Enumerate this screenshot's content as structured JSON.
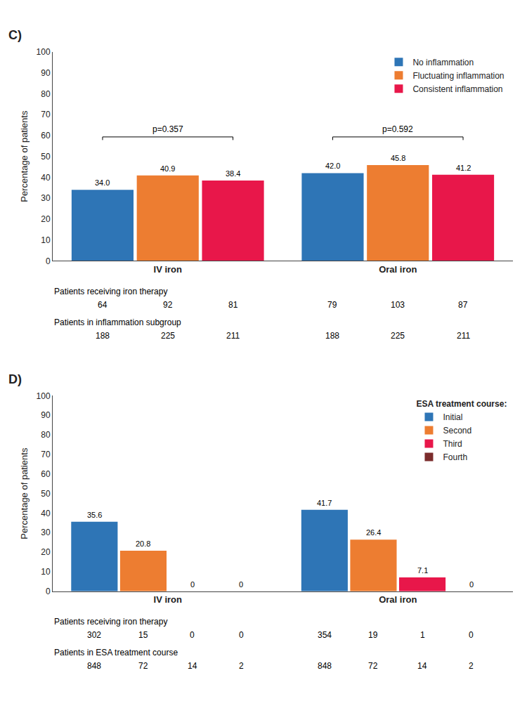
{
  "chart_data": [
    {
      "type": "bar",
      "title": "C)",
      "categories": [
        "IV iron",
        "Oral iron"
      ],
      "series": [
        {
          "name": "No inflammation",
          "color": "#2E75B6",
          "values": [
            34.0,
            42.0
          ],
          "value_labels": [
            "34.0",
            "42.0"
          ]
        },
        {
          "name": "Fluctuating inflammation",
          "color": "#ED7D31",
          "values": [
            40.9,
            45.8
          ],
          "value_labels": [
            "40.9",
            "45.8"
          ]
        },
        {
          "name": "Consistent inflammation",
          "color": "#E8174A",
          "values": [
            38.4,
            41.2
          ],
          "value_labels": [
            "38.4",
            "41.2"
          ]
        }
      ],
      "ylabel": "Percentage of patients",
      "ylim": [
        0,
        100
      ],
      "yticks": [
        0,
        10,
        20,
        30,
        40,
        50,
        60,
        70,
        80,
        90,
        100
      ],
      "grid": false,
      "legend": "upper right",
      "data_labels": true,
      "annotations": [
        {
          "category": "IV iron",
          "text": "p=0.357"
        },
        {
          "category": "Oral iron",
          "text": "p=0.592"
        }
      ],
      "table_rows": [
        {
          "label": "Patients receiving iron therapy",
          "cells": [
            [
              "64",
              "92",
              "81"
            ],
            [
              "79",
              "103",
              "87"
            ]
          ]
        },
        {
          "label": "Patients in inflammation subgroup",
          "cells": [
            [
              "188",
              "225",
              "211"
            ],
            [
              "188",
              "225",
              "211"
            ]
          ]
        }
      ]
    },
    {
      "type": "bar",
      "title": "D)",
      "categories": [
        "IV iron",
        "Oral iron"
      ],
      "series": [
        {
          "name": "Initial",
          "color": "#2E75B6",
          "values": [
            35.6,
            41.7
          ]
        },
        {
          "name": "Second",
          "color": "#ED7D31",
          "values": [
            20.8,
            26.4
          ]
        },
        {
          "name": "Third",
          "color": "#E8174A",
          "values": [
            0,
            7.1
          ]
        },
        {
          "name": "Fourth",
          "color": "#7B2C2C",
          "values": [
            0,
            0
          ]
        }
      ],
      "legend_title": "ESA treatment course:",
      "ylabel": "Percentage of patients",
      "ylim": [
        0,
        100
      ],
      "yticks": [
        0,
        10,
        20,
        30,
        40,
        50,
        60,
        70,
        80,
        90,
        100
      ],
      "grid": false,
      "legend": "upper right",
      "data_labels": true,
      "table_rows": [
        {
          "label": "Patients receiving iron therapy",
          "cells": [
            [
              "302",
              "15",
              "0",
              "0"
            ],
            [
              "354",
              "19",
              "1",
              "0"
            ]
          ]
        },
        {
          "label": "Patients in ESA treatment course",
          "cells": [
            [
              "848",
              "72",
              "14",
              "2"
            ],
            [
              "848",
              "72",
              "14",
              "2"
            ]
          ]
        }
      ]
    }
  ]
}
